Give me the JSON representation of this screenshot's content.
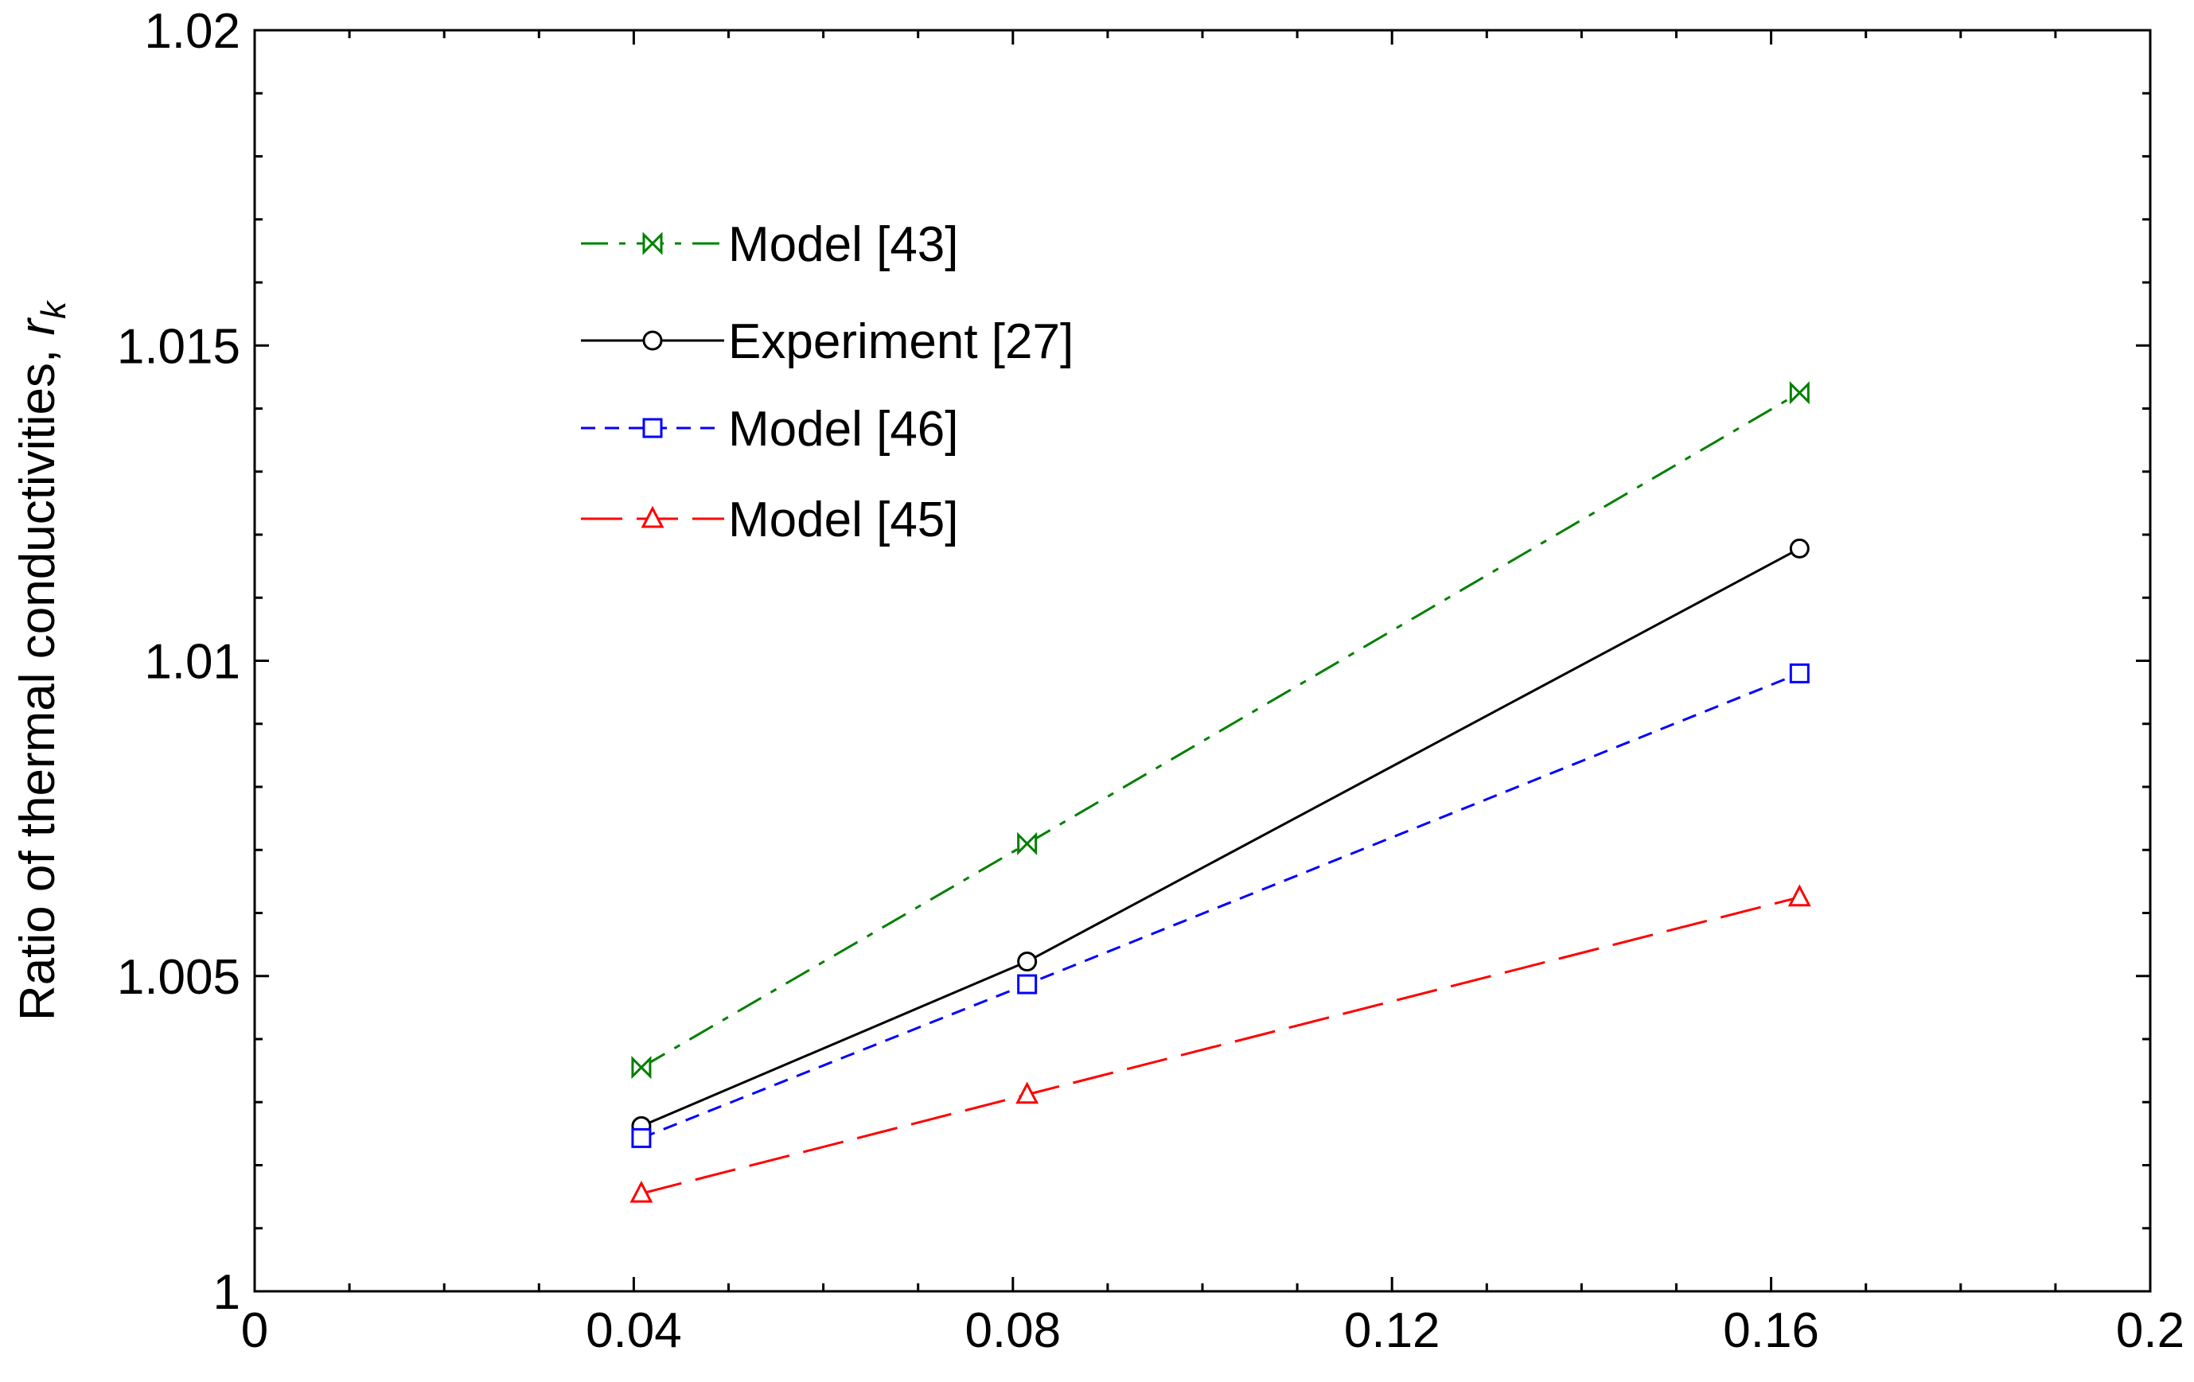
{
  "chart_data": {
    "type": "line",
    "title": "",
    "xlabel": "",
    "ylabel": "Ratio of thermal conductivities, ",
    "ylabel_symbol": "r",
    "ylabel_subscript": "k",
    "xlim": [
      0,
      0.2
    ],
    "ylim": [
      1,
      1.02
    ],
    "x_ticks": [
      0,
      0.04,
      0.08,
      0.12,
      0.16,
      0.2
    ],
    "x_tick_labels": [
      "0",
      "0.04",
      "0.08",
      "0.12",
      "0.16",
      "0.2"
    ],
    "y_ticks": [
      1,
      1.005,
      1.01,
      1.015,
      1.02
    ],
    "y_tick_labels": [
      "1",
      "1.005",
      "1.01",
      "1.015",
      "1.02"
    ],
    "grid": false,
    "legend_position": "top-left",
    "series": [
      {
        "name": "Model [43]",
        "color": "#008000",
        "dash": "dashdot",
        "marker": "bowtie",
        "x": [
          0.0408,
          0.0815,
          0.163
        ],
        "values": [
          1.00355,
          1.0071,
          1.01425
        ]
      },
      {
        "name": "Experiment [27]",
        "color": "#000000",
        "dash": "solid",
        "marker": "circle",
        "x": [
          0.0408,
          0.0815,
          0.163
        ],
        "values": [
          1.00262,
          1.00523,
          1.01178
        ]
      },
      {
        "name": "Model [46]",
        "color": "#0000ff",
        "dash": "dashed",
        "marker": "square",
        "x": [
          0.0408,
          0.0815,
          0.163
        ],
        "values": [
          1.00243,
          1.00487,
          1.0098
        ]
      },
      {
        "name": "Model [45]",
        "color": "#ff0000",
        "dash": "longdash",
        "marker": "triangle",
        "x": [
          0.0408,
          0.0815,
          0.163
        ],
        "values": [
          1.00155,
          1.00312,
          1.00625
        ]
      }
    ]
  }
}
